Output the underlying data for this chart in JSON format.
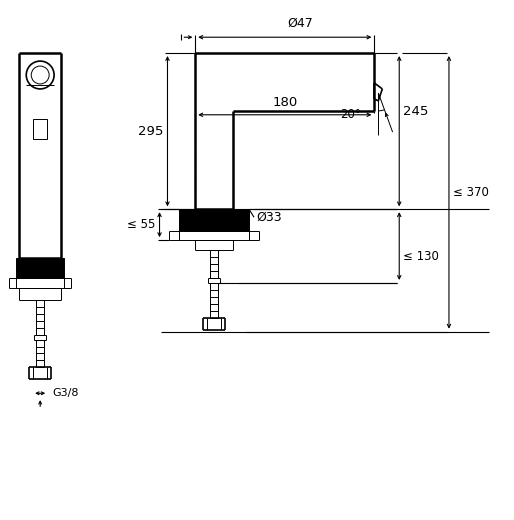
{
  "bg_color": "#ffffff",
  "line_color": "#000000",
  "fig_width": 5.14,
  "fig_height": 5.2,
  "dpi": 100,
  "annotations": {
    "phi47": "Ø47",
    "phi33": "Ø33",
    "dim_295": "295",
    "dim_245": "245",
    "dim_180": "180",
    "dim_55": "≤ 55",
    "dim_130": "≤ 130",
    "dim_370": "≤ 370",
    "dim_G38": "G3/8",
    "dim_20deg": "20°"
  }
}
